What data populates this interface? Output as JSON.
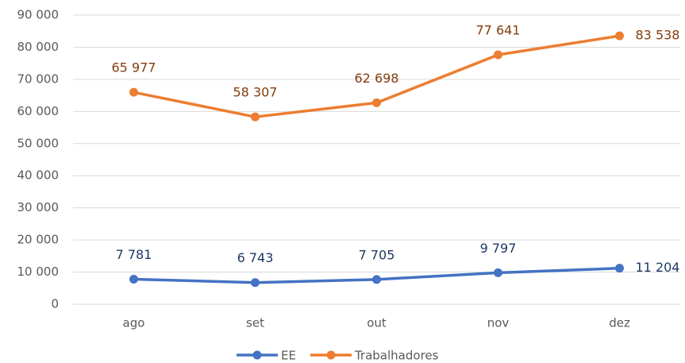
{
  "chart_data": {
    "type": "line",
    "categories": [
      "ago",
      "set",
      "out",
      "nov",
      "dez"
    ],
    "series": [
      {
        "name": "EE",
        "color": "#4472c4",
        "label_color": "#1f3864",
        "values": [
          7781,
          6743,
          7705,
          9797,
          11204
        ],
        "value_labels": [
          "7 781",
          "6 743",
          "7 705",
          "9 797",
          "11 204"
        ]
      },
      {
        "name": "Trabalhadores",
        "color": "#ed7d31",
        "label_color": "#843c0c",
        "values": [
          65977,
          58307,
          62698,
          77641,
          83538
        ],
        "value_labels": [
          "65 977",
          "58 307",
          "62 698",
          "77 641",
          "83 538"
        ]
      }
    ],
    "ylim": [
      0,
      90000
    ],
    "yticks": [
      0,
      {
        "value": 10000,
        "label": "10 000"
      },
      {
        "value": 20000,
        "label": "20 000"
      },
      {
        "value": 30000,
        "label": "30 000"
      },
      {
        "value": 40000,
        "label": "40 000"
      },
      {
        "value": 50000,
        "label": "50 000"
      },
      {
        "value": 60000,
        "label": "60 000"
      },
      {
        "value": 70000,
        "label": "70 000"
      },
      {
        "value": 80000,
        "label": "80 000"
      },
      {
        "value": 90000,
        "label": "90 000"
      }
    ],
    "grid": true,
    "legend": "bottom"
  }
}
